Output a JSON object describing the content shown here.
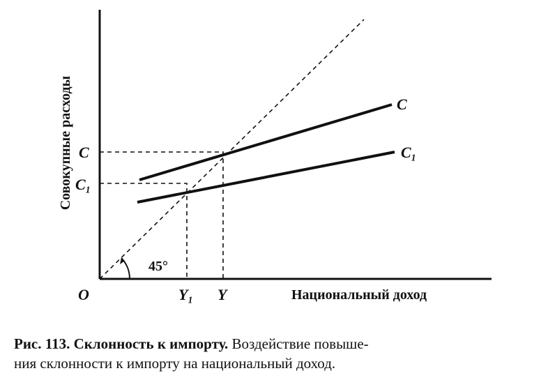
{
  "axes": {
    "y_label": "Совокупные расходы",
    "x_label": "Национальный доход"
  },
  "labels": {
    "origin": "O",
    "c_axis": "C",
    "c1_axis": "C₁",
    "y": "Y",
    "y1": "Y₁",
    "angle": "45°",
    "line_c": "C",
    "line_c1": "C₁"
  },
  "caption": {
    "figure": "Рис. 113. Склонность к импорту.",
    "line1": "Воздействие повыше-",
    "line2": "ния склонности к импорту на национальный доход."
  }
}
